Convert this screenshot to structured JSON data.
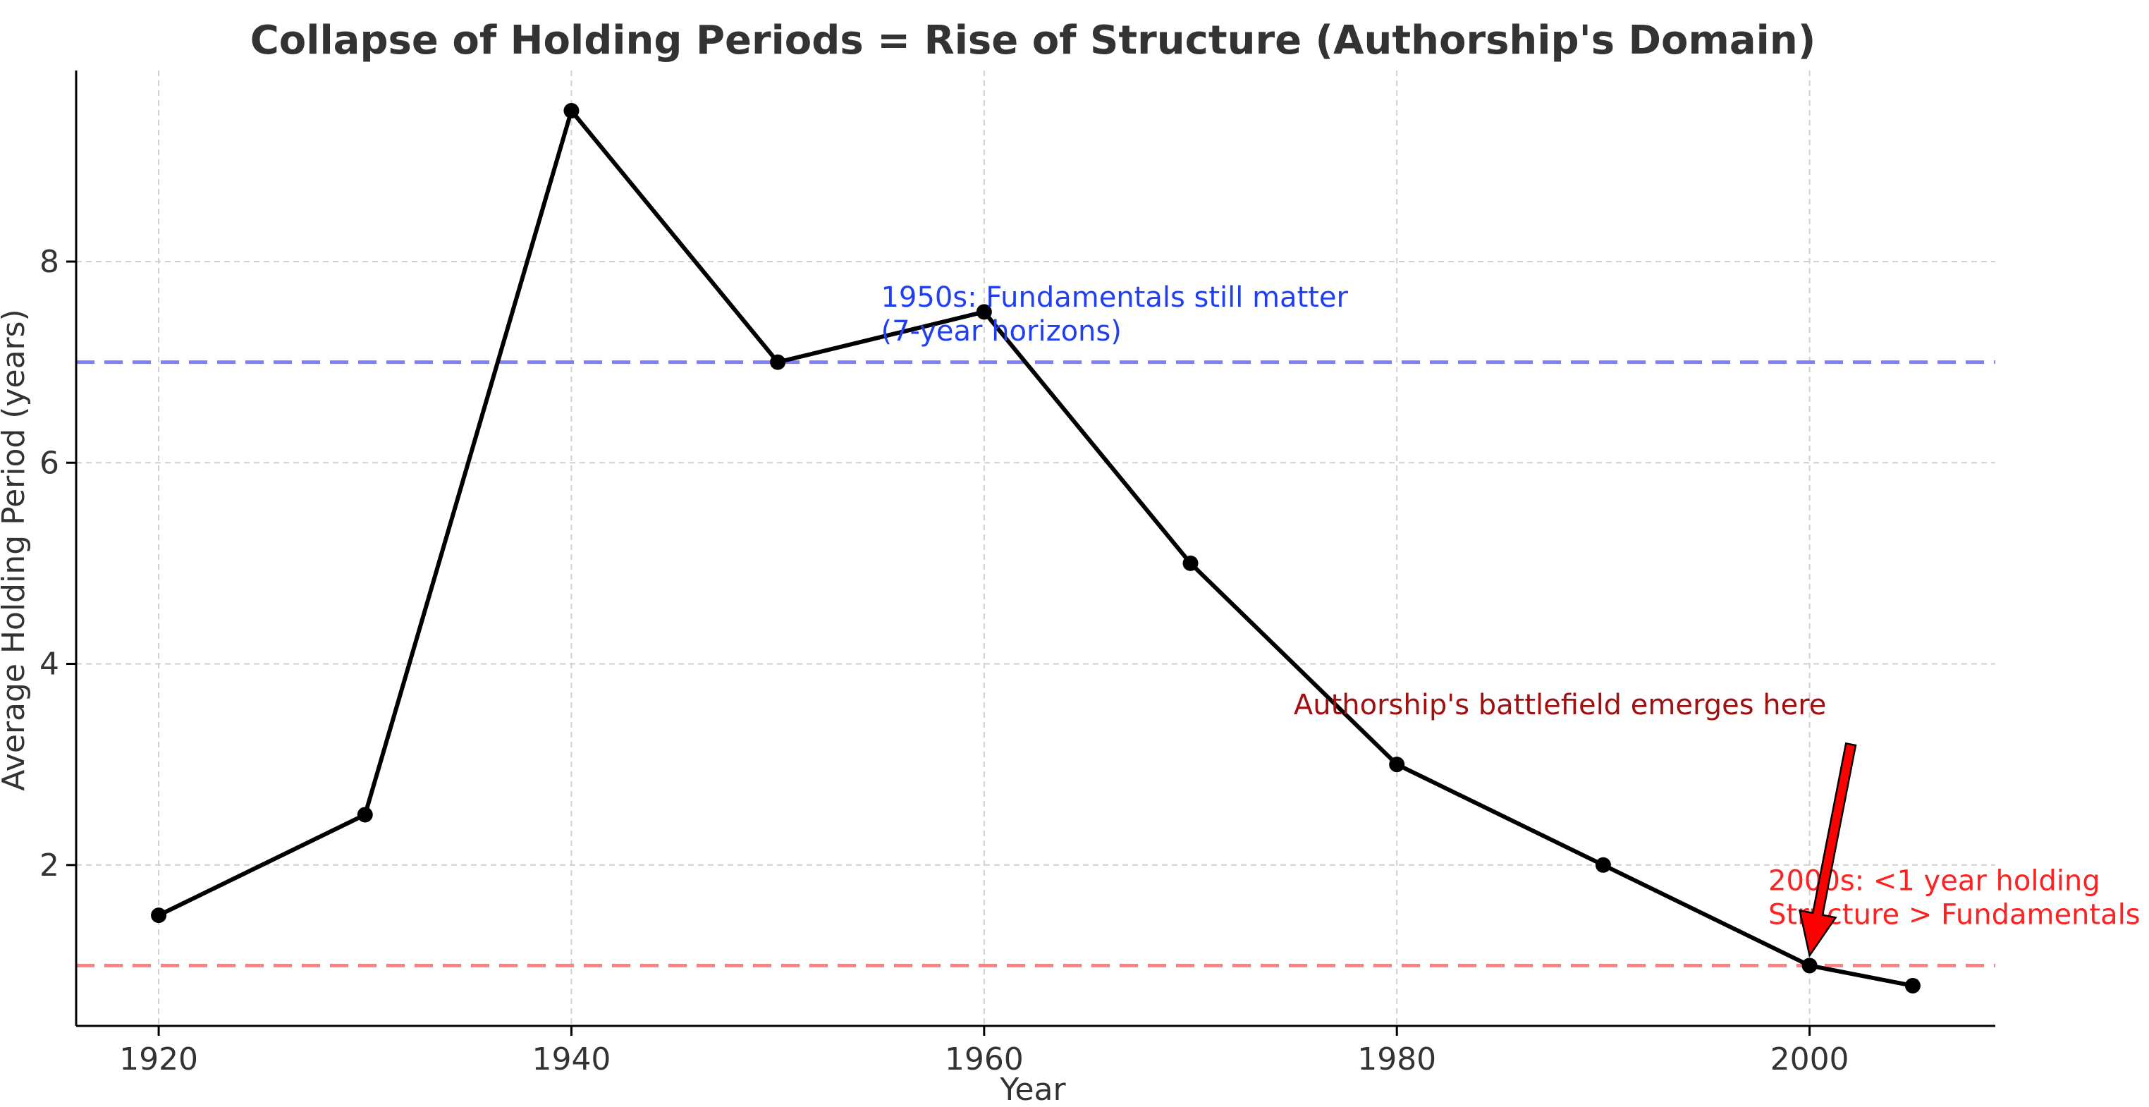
{
  "chart_data": {
    "type": "line",
    "title": "Collapse of Holding Periods = Rise of Structure (Authorship's Domain)",
    "xlabel": "Year",
    "ylabel": "Average Holding Period (years)",
    "xlim": [
      1916,
      2009
    ],
    "ylim": [
      0.4,
      9.9
    ],
    "x_ticks": [
      1920,
      1940,
      1960,
      1980,
      2000
    ],
    "y_ticks": [
      2,
      4,
      6,
      8
    ],
    "grid": true,
    "legend": "none",
    "series": [
      {
        "x": [
          1920,
          1930,
          1940,
          1950,
          1960,
          1970,
          1980,
          1990,
          2000,
          2005
        ],
        "values": [
          1.5,
          2.5,
          9.5,
          7.0,
          7.5,
          5.0,
          3.0,
          2.0,
          1.0,
          0.8
        ],
        "color": "#000000"
      }
    ],
    "reference_lines": [
      {
        "y": 7.0,
        "color": "#8080ff"
      },
      {
        "y": 1.0,
        "color": "#ff8080"
      }
    ],
    "annotations": [
      {
        "lines": [
          "1950s: Fundamentals still matter",
          "(7-year horizons)"
        ],
        "x": 1955,
        "y": 7.55,
        "color": "#1f3ff0"
      },
      {
        "lines": [
          "2000s: <1 year holding",
          "Structure > Fundamentals"
        ],
        "x": 1998,
        "y": 1.75,
        "color": "#ff2020"
      },
      {
        "lines": [
          "Authorship's battlefield emerges here"
        ],
        "x": 1975,
        "y": 3.5,
        "color": "#a01010",
        "arrow_from": {
          "x": 2002,
          "y": 3.2
        },
        "arrow_to": {
          "x": 2000,
          "y": 1.1
        }
      }
    ]
  }
}
